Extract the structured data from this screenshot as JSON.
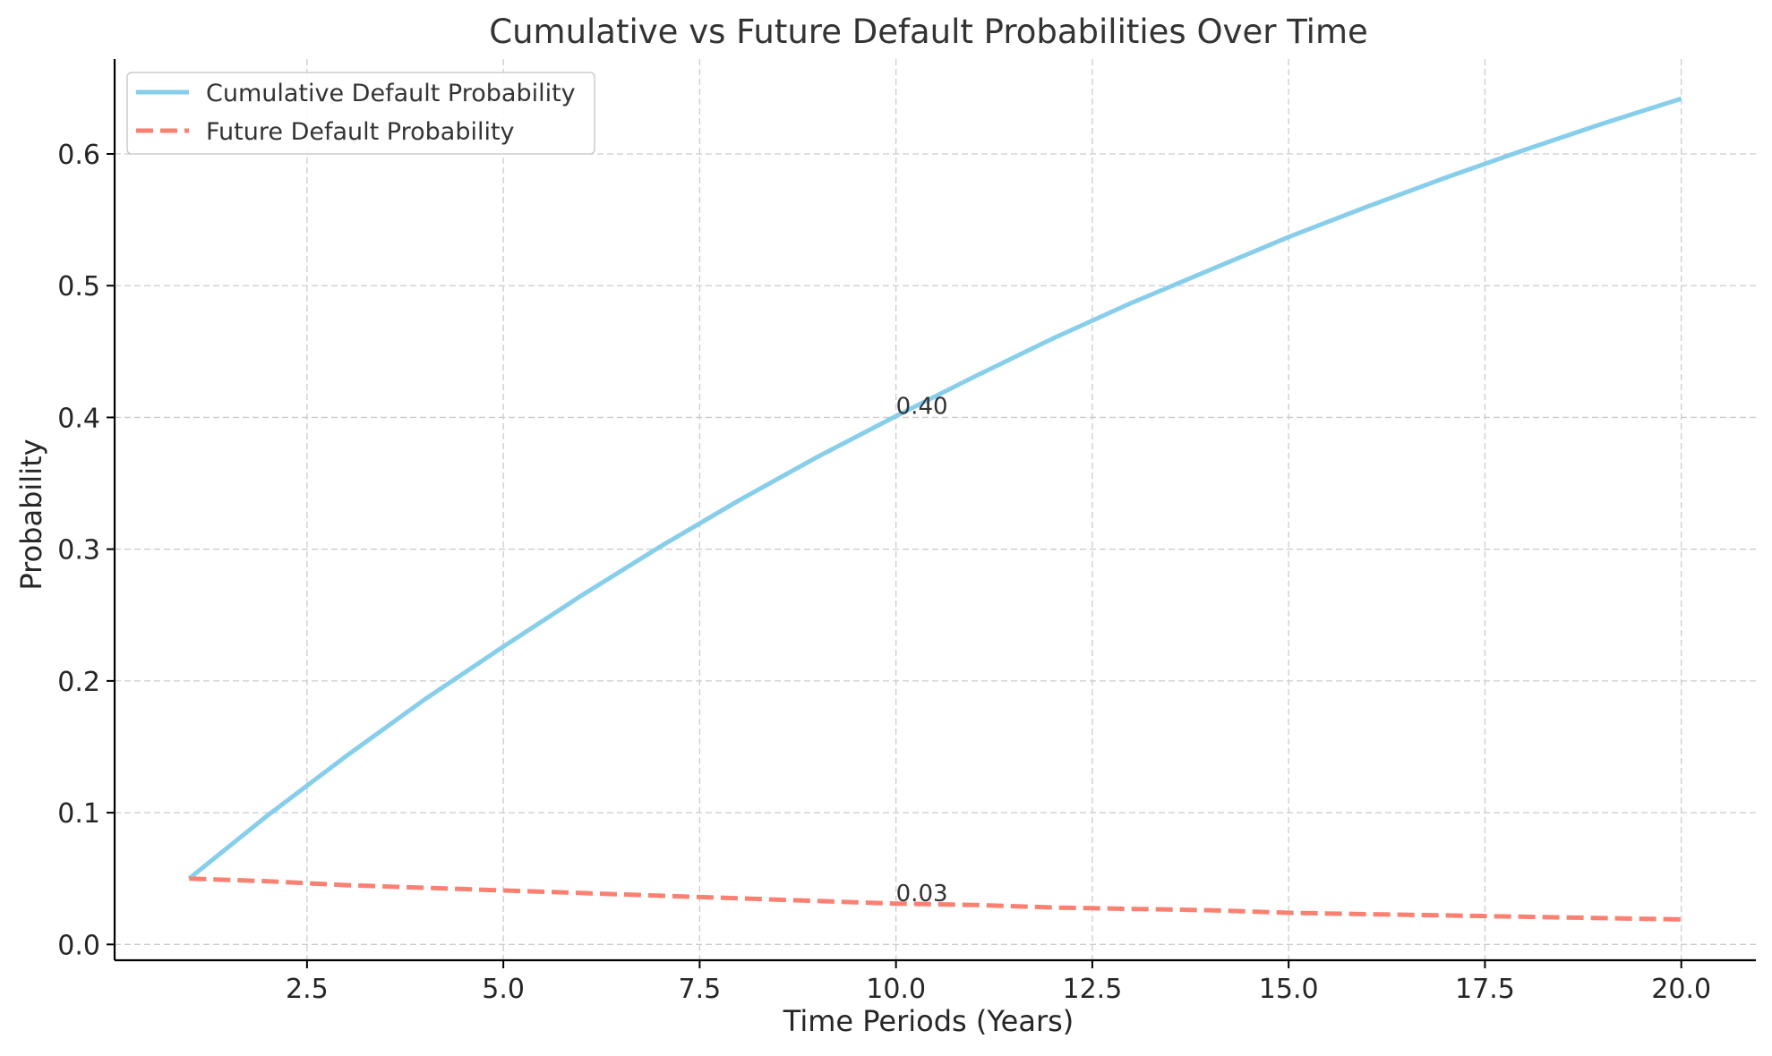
{
  "chart_data": {
    "type": "line",
    "title": "Cumulative vs Future Default Probabilities Over Time",
    "xlabel": "Time Periods (Years)",
    "ylabel": "Probability",
    "xlim": [
      0.05,
      20.95
    ],
    "ylim": [
      -0.012,
      0.672
    ],
    "xticks": [
      2.5,
      5.0,
      7.5,
      10.0,
      12.5,
      15.0,
      17.5,
      20.0
    ],
    "xtick_labels": [
      "2.5",
      "5.0",
      "7.5",
      "10.0",
      "12.5",
      "15.0",
      "17.5",
      "20.0"
    ],
    "yticks": [
      0.0,
      0.1,
      0.2,
      0.3,
      0.4,
      0.5,
      0.6
    ],
    "ytick_labels": [
      "0.0",
      "0.1",
      "0.2",
      "0.3",
      "0.4",
      "0.5",
      "0.6"
    ],
    "grid": true,
    "legend_position": "top-left",
    "x": [
      1,
      2,
      3,
      4,
      5,
      6,
      7,
      8,
      9,
      10,
      11,
      12,
      13,
      14,
      15,
      16,
      17,
      18,
      19,
      20
    ],
    "series": [
      {
        "name": "Cumulative Default Probability",
        "style": "solid",
        "color": "#87CEEB",
        "values": [
          0.05,
          0.098,
          0.143,
          0.186,
          0.226,
          0.265,
          0.302,
          0.337,
          0.37,
          0.401,
          0.431,
          0.46,
          0.487,
          0.512,
          0.537,
          0.56,
          0.582,
          0.603,
          0.623,
          0.642
        ]
      },
      {
        "name": "Future Default Probability",
        "style": "dashed",
        "color": "#FA8072",
        "values": [
          0.05,
          0.048,
          0.045,
          0.043,
          0.041,
          0.039,
          0.037,
          0.035,
          0.033,
          0.031,
          0.03,
          0.028,
          0.027,
          0.026,
          0.024,
          0.023,
          0.022,
          0.021,
          0.02,
          0.019
        ]
      }
    ],
    "annotations": [
      {
        "x": 10,
        "y": 0.4,
        "text": "0.40"
      },
      {
        "x": 10,
        "y": 0.03,
        "text": "0.03"
      }
    ]
  }
}
